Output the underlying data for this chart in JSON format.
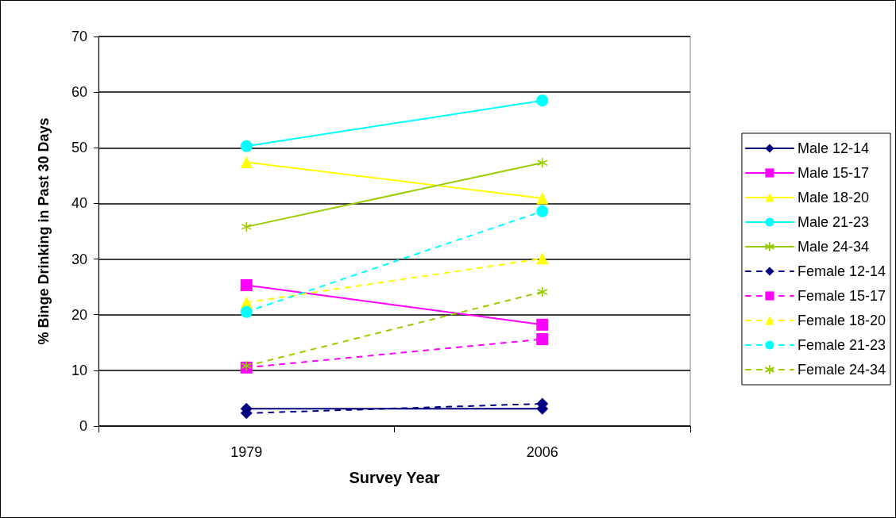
{
  "chart_data": {
    "type": "line",
    "xlabel": "Survey Year",
    "ylabel": "% Binge Drinking in Past 30 Days",
    "categories": [
      "1979",
      "2006"
    ],
    "series": [
      {
        "name": "Male 12-14",
        "color": "#000080",
        "marker": "diamond",
        "line_style": "solid",
        "values": [
          3.1,
          3.1
        ]
      },
      {
        "name": "Male 15-17",
        "color": "#ff00ff",
        "marker": "square",
        "line_style": "solid",
        "values": [
          25.3,
          18.2
        ]
      },
      {
        "name": "Male 18-20",
        "color": "#ffff00",
        "marker": "triangle",
        "line_style": "solid",
        "values": [
          47.4,
          40.9
        ]
      },
      {
        "name": "Male 21-23",
        "color": "#00ffff",
        "marker": "circle",
        "line_style": "solid",
        "values": [
          50.3,
          58.5
        ]
      },
      {
        "name": "Male 24-34",
        "color": "#99cc00",
        "marker": "cross",
        "line_style": "solid",
        "values": [
          35.8,
          47.3
        ]
      },
      {
        "name": "Female 12-14",
        "color": "#000080",
        "marker": "diamond",
        "line_style": "dashed",
        "values": [
          2.3,
          4.0
        ]
      },
      {
        "name": "Female 15-17",
        "color": "#ff00ff",
        "marker": "square",
        "line_style": "dashed",
        "values": [
          10.5,
          15.6
        ]
      },
      {
        "name": "Female 18-20",
        "color": "#ffff00",
        "marker": "triangle",
        "line_style": "dashed",
        "values": [
          22.2,
          30.1
        ]
      },
      {
        "name": "Female 21-23",
        "color": "#00ffff",
        "marker": "circle",
        "line_style": "dashed",
        "values": [
          20.5,
          38.6
        ]
      },
      {
        "name": "Female 24-34",
        "color": "#99cc00",
        "marker": "cross",
        "line_style": "dashed",
        "values": [
          10.8,
          24.1
        ]
      }
    ],
    "ylim": [
      0,
      70
    ],
    "yticks": [
      0,
      10,
      20,
      30,
      40,
      50,
      60,
      70
    ],
    "grid": "y",
    "legend": "right"
  }
}
